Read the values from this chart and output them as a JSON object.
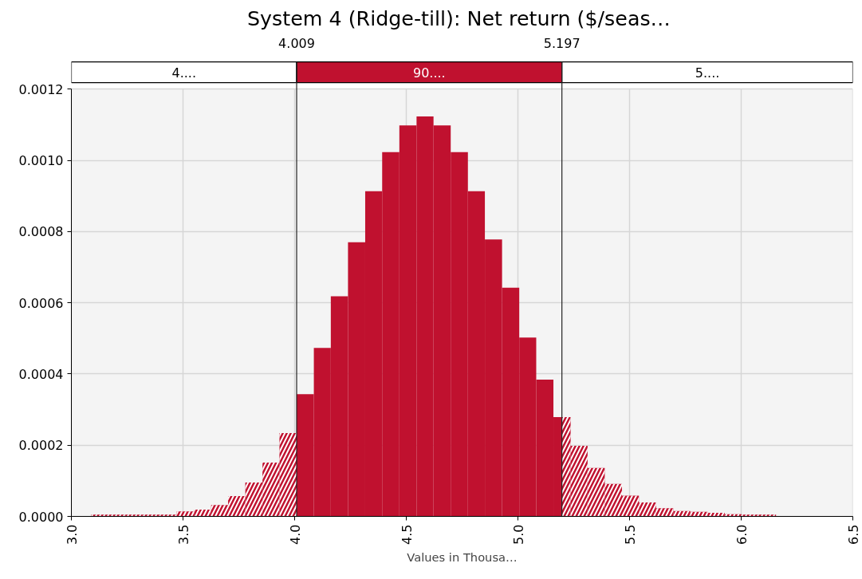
{
  "chart_data": {
    "type": "histogram",
    "title": "System 4 (Ridge-till):  Net return ($/seas…",
    "xlabel": "Values in Thousa…",
    "color": "#c0112f",
    "bins": [
      3.089,
      3.166,
      3.242,
      3.319,
      3.396,
      3.472,
      3.549,
      3.626,
      3.702,
      3.779,
      3.856,
      3.932,
      4.009,
      4.086,
      4.162,
      4.239,
      4.316,
      4.392,
      4.469,
      4.546,
      4.622,
      4.699,
      4.776,
      4.852,
      4.929,
      5.006,
      5.082,
      5.159,
      5.197,
      5.236,
      5.312,
      5.389,
      5.466,
      5.542,
      5.619,
      5.696,
      5.772,
      5.849,
      5.926,
      6.002,
      6.079,
      6.156
    ],
    "values": [
      5e-06,
      5e-06,
      5e-06,
      5e-06,
      5e-06,
      1.4e-05,
      1.9e-05,
      3.2e-05,
      5.7e-05,
      9.5e-05,
      0.000151,
      0.000234,
      0.000343,
      0.000473,
      0.000618,
      0.00077,
      0.000913,
      0.001023,
      0.001098,
      0.001123,
      0.001098,
      0.001023,
      0.000913,
      0.000778,
      0.000642,
      0.000502,
      0.000384,
      0.000279,
      0.000279,
      0.000198,
      0.000136,
      9.1e-05,
      5.8e-05,
      3.9e-05,
      2.3e-05,
      1.5e-05,
      1.3e-05,
      1e-05,
      6e-06,
      5e-06,
      5e-06
    ],
    "xlim": [
      3.0,
      6.5
    ],
    "xticks": [
      {
        "value": 3.0,
        "label": "3.0"
      },
      {
        "value": 3.5,
        "label": "3.5"
      },
      {
        "value": 4.0,
        "label": "4.0"
      },
      {
        "value": 4.5,
        "label": "4.5"
      },
      {
        "value": 5.0,
        "label": "5.0"
      },
      {
        "value": 5.5,
        "label": "5.5"
      },
      {
        "value": 6.0,
        "label": "6.0"
      },
      {
        "value": 6.5,
        "label": "6.5"
      }
    ],
    "ylim": [
      0,
      0.0012
    ],
    "yticks": [
      {
        "value": 0,
        "label": "0.0000"
      },
      {
        "value": 0.0002,
        "label": "0.0002"
      },
      {
        "value": 0.0004,
        "label": "0.0004"
      },
      {
        "value": 0.0006,
        "label": "0.0006"
      },
      {
        "value": 0.0008,
        "label": "0.0008"
      },
      {
        "value": 0.001,
        "label": "0.0010"
      },
      {
        "value": 0.0012,
        "label": "0.0012"
      }
    ],
    "ref_lines": [
      {
        "axis": "x",
        "value": 4.009,
        "label": "4.009"
      },
      {
        "axis": "x",
        "value": 5.197,
        "label": "5.197"
      }
    ],
    "annotations": [
      "4....",
      "90....",
      "5...."
    ],
    "grid": true
  }
}
